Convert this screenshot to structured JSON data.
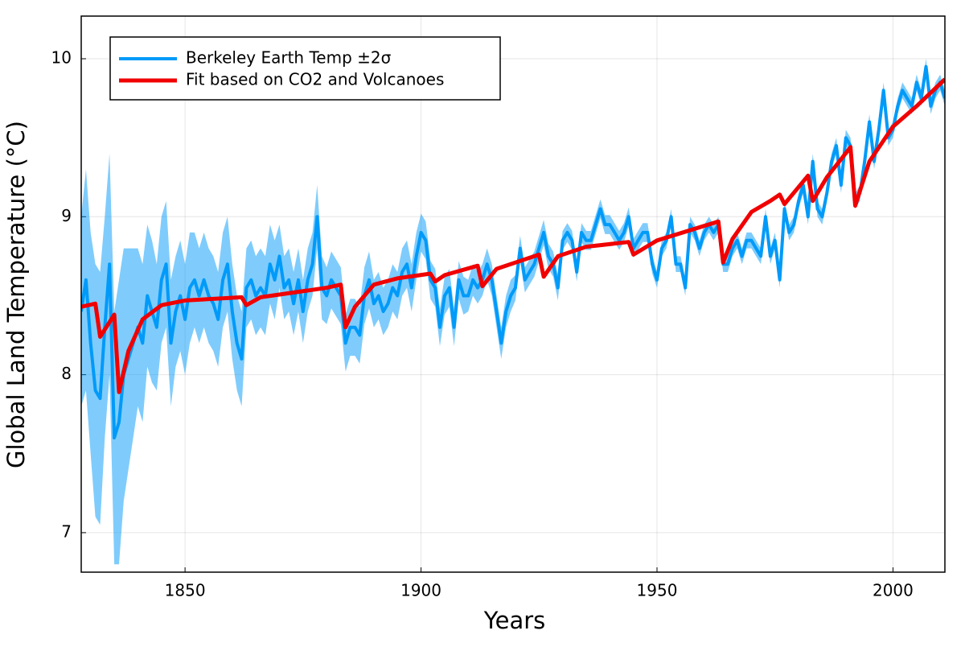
{
  "chart_data": {
    "type": "line",
    "xlabel": "Years",
    "ylabel": "Global Land Temperature (°C)",
    "xlim": [
      1828,
      2011
    ],
    "ylim": [
      6.75,
      10.27
    ],
    "xticks": [
      1850,
      1900,
      1950,
      2000
    ],
    "yticks": [
      7,
      8,
      9,
      10
    ],
    "grid": true,
    "legend": "top-left",
    "series": [
      {
        "name": "Berkeley Earth Temp ±2σ",
        "color": "#009af9",
        "x": [
          1828,
          1829,
          1830,
          1831,
          1832,
          1833,
          1834,
          1835,
          1836,
          1837,
          1838,
          1839,
          1840,
          1841,
          1842,
          1843,
          1844,
          1845,
          1846,
          1847,
          1848,
          1849,
          1850,
          1851,
          1852,
          1853,
          1854,
          1855,
          1856,
          1857,
          1858,
          1859,
          1860,
          1861,
          1862,
          1863,
          1864,
          1865,
          1866,
          1867,
          1868,
          1869,
          1870,
          1871,
          1872,
          1873,
          1874,
          1875,
          1876,
          1877,
          1878,
          1879,
          1880,
          1881,
          1882,
          1883,
          1884,
          1885,
          1886,
          1887,
          1888,
          1889,
          1890,
          1891,
          1892,
          1893,
          1894,
          1895,
          1896,
          1897,
          1898,
          1899,
          1900,
          1901,
          1902,
          1903,
          1904,
          1905,
          1906,
          1907,
          1908,
          1909,
          1910,
          1911,
          1912,
          1913,
          1914,
          1915,
          1916,
          1917,
          1918,
          1919,
          1920,
          1921,
          1922,
          1923,
          1924,
          1925,
          1926,
          1927,
          1928,
          1929,
          1930,
          1931,
          1932,
          1933,
          1934,
          1935,
          1936,
          1937,
          1938,
          1939,
          1940,
          1941,
          1942,
          1943,
          1944,
          1945,
          1946,
          1947,
          1948,
          1949,
          1950,
          1951,
          1952,
          1953,
          1954,
          1955,
          1956,
          1957,
          1958,
          1959,
          1960,
          1961,
          1962,
          1963,
          1964,
          1965,
          1966,
          1967,
          1968,
          1969,
          1970,
          1971,
          1972,
          1973,
          1974,
          1975,
          1976,
          1977,
          1978,
          1979,
          1980,
          1981,
          1982,
          1983,
          1984,
          1985,
          1986,
          1987,
          1988,
          1989,
          1990,
          1991,
          1992,
          1993,
          1994,
          1995,
          1996,
          1997,
          1998,
          1999,
          2000,
          2001,
          2002,
          2003,
          2004,
          2005,
          2006,
          2007,
          2008,
          2009,
          2010,
          2011
        ],
        "values": [
          8.4,
          8.6,
          8.2,
          7.9,
          7.85,
          8.3,
          8.7,
          7.6,
          7.7,
          8.0,
          8.1,
          8.2,
          8.3,
          8.2,
          8.5,
          8.4,
          8.3,
          8.6,
          8.7,
          8.2,
          8.4,
          8.5,
          8.35,
          8.55,
          8.6,
          8.5,
          8.6,
          8.5,
          8.45,
          8.35,
          8.6,
          8.7,
          8.4,
          8.2,
          8.1,
          8.55,
          8.6,
          8.5,
          8.55,
          8.5,
          8.7,
          8.6,
          8.75,
          8.55,
          8.6,
          8.45,
          8.6,
          8.4,
          8.6,
          8.7,
          9.0,
          8.55,
          8.5,
          8.6,
          8.55,
          8.5,
          8.2,
          8.3,
          8.3,
          8.25,
          8.5,
          8.6,
          8.45,
          8.5,
          8.4,
          8.45,
          8.55,
          8.5,
          8.65,
          8.7,
          8.55,
          8.75,
          8.9,
          8.85,
          8.6,
          8.55,
          8.3,
          8.5,
          8.55,
          8.3,
          8.6,
          8.5,
          8.5,
          8.6,
          8.55,
          8.6,
          8.7,
          8.6,
          8.4,
          8.2,
          8.4,
          8.5,
          8.55,
          8.8,
          8.6,
          8.65,
          8.7,
          8.8,
          8.9,
          8.75,
          8.7,
          8.55,
          8.85,
          8.9,
          8.85,
          8.65,
          8.9,
          8.85,
          8.85,
          8.95,
          9.05,
          8.95,
          8.95,
          8.9,
          8.85,
          8.9,
          9.0,
          8.8,
          8.85,
          8.9,
          8.9,
          8.7,
          8.6,
          8.8,
          8.85,
          9.0,
          8.7,
          8.7,
          8.55,
          8.95,
          8.9,
          8.8,
          8.9,
          8.95,
          8.9,
          8.95,
          8.7,
          8.7,
          8.8,
          8.85,
          8.75,
          8.85,
          8.85,
          8.8,
          8.75,
          9.0,
          8.75,
          8.85,
          8.6,
          9.05,
          8.9,
          8.95,
          9.1,
          9.2,
          9.0,
          9.35,
          9.05,
          9.0,
          9.15,
          9.35,
          9.45,
          9.2,
          9.5,
          9.45,
          9.1,
          9.15,
          9.35,
          9.6,
          9.35,
          9.55,
          9.8,
          9.5,
          9.55,
          9.7,
          9.8,
          9.75,
          9.7,
          9.85,
          9.75,
          9.95,
          9.7,
          9.8,
          9.85,
          9.75
        ],
        "uncertainty": [
          0.6,
          0.7,
          0.7,
          0.8,
          0.8,
          0.7,
          0.7,
          0.8,
          0.9,
          0.8,
          0.7,
          0.6,
          0.5,
          0.5,
          0.45,
          0.45,
          0.4,
          0.4,
          0.4,
          0.4,
          0.35,
          0.35,
          0.35,
          0.35,
          0.3,
          0.3,
          0.3,
          0.3,
          0.3,
          0.3,
          0.3,
          0.3,
          0.3,
          0.3,
          0.3,
          0.25,
          0.25,
          0.25,
          0.25,
          0.25,
          0.25,
          0.25,
          0.2,
          0.2,
          0.2,
          0.2,
          0.2,
          0.2,
          0.2,
          0.2,
          0.2,
          0.2,
          0.18,
          0.18,
          0.18,
          0.18,
          0.18,
          0.18,
          0.18,
          0.18,
          0.18,
          0.18,
          0.15,
          0.15,
          0.15,
          0.15,
          0.15,
          0.15,
          0.15,
          0.15,
          0.15,
          0.15,
          0.12,
          0.12,
          0.12,
          0.12,
          0.12,
          0.12,
          0.12,
          0.12,
          0.12,
          0.12,
          0.1,
          0.1,
          0.1,
          0.1,
          0.1,
          0.1,
          0.1,
          0.1,
          0.1,
          0.1,
          0.08,
          0.08,
          0.08,
          0.08,
          0.08,
          0.08,
          0.08,
          0.08,
          0.08,
          0.08,
          0.06,
          0.06,
          0.06,
          0.06,
          0.06,
          0.06,
          0.06,
          0.06,
          0.06,
          0.06,
          0.06,
          0.06,
          0.06,
          0.06,
          0.06,
          0.06,
          0.06,
          0.06,
          0.06,
          0.06,
          0.05,
          0.05,
          0.05,
          0.05,
          0.05,
          0.05,
          0.05,
          0.05,
          0.05,
          0.05,
          0.05,
          0.05,
          0.05,
          0.05,
          0.05,
          0.05,
          0.05,
          0.05,
          0.05,
          0.05,
          0.05,
          0.05,
          0.05,
          0.05,
          0.05,
          0.05,
          0.05,
          0.05,
          0.05,
          0.05,
          0.05,
          0.05,
          0.05,
          0.05,
          0.05,
          0.05,
          0.05,
          0.05,
          0.05,
          0.05,
          0.05,
          0.05,
          0.05,
          0.05,
          0.05,
          0.05,
          0.05,
          0.05,
          0.05,
          0.05,
          0.05,
          0.05,
          0.05,
          0.05,
          0.05,
          0.05,
          0.05,
          0.05,
          0.05,
          0.05,
          0.05,
          0.05
        ]
      },
      {
        "name": "Fit based on CO2 and Volcanoes",
        "color": "#f00000",
        "x": [
          1828,
          1831,
          1832,
          1835,
          1836,
          1838,
          1841,
          1845,
          1850,
          1862,
          1863,
          1866,
          1880,
          1883,
          1884,
          1886,
          1890,
          1895,
          1902,
          1903,
          1905,
          1912,
          1913,
          1916,
          1925,
          1926,
          1929,
          1935,
          1944,
          1945,
          1950,
          1963,
          1964,
          1966,
          1970,
          1974,
          1976,
          1977,
          1982,
          1983,
          1986,
          1991,
          1992,
          1995,
          2000,
          2005,
          2011
        ],
        "values": [
          8.43,
          8.45,
          8.24,
          8.38,
          7.89,
          8.15,
          8.35,
          8.44,
          8.47,
          8.49,
          8.44,
          8.49,
          8.55,
          8.57,
          8.3,
          8.43,
          8.57,
          8.61,
          8.64,
          8.59,
          8.63,
          8.69,
          8.56,
          8.67,
          8.76,
          8.62,
          8.75,
          8.81,
          8.84,
          8.76,
          8.85,
          8.97,
          8.71,
          8.86,
          9.03,
          9.1,
          9.14,
          9.08,
          9.26,
          9.1,
          9.25,
          9.44,
          9.07,
          9.35,
          9.57,
          9.7,
          9.87
        ]
      }
    ]
  }
}
